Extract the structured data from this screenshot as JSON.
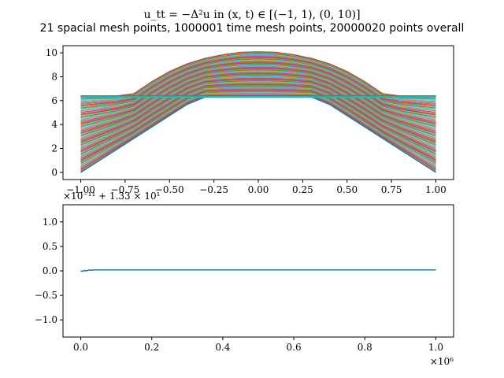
{
  "figure": {
    "title": "u_tt = −Δ²u in (x, t) ∈ [(−1, 1), (0, 10)]",
    "subtitle": "21 spacial mesh points, 1000001 time mesh points, 20000020 points overall"
  },
  "chart_data": [
    {
      "type": "line",
      "description_series_count": 21,
      "x": [
        -1.0,
        -0.9,
        -0.8,
        -0.7,
        -0.6,
        -0.5,
        -0.4,
        -0.3,
        -0.2,
        -0.1,
        0.0,
        0.1,
        0.2,
        0.3,
        0.4,
        0.5,
        0.6,
        0.7,
        0.8,
        0.9,
        1.0
      ],
      "envelope_upper": [
        6.4,
        6.4,
        6.4,
        6.6,
        7.6,
        8.45,
        9.1,
        9.55,
        9.85,
        10.05,
        10.1,
        10.05,
        9.85,
        9.55,
        9.1,
        8.45,
        7.6,
        6.6,
        6.4,
        6.4,
        6.4
      ],
      "series": [
        {
          "values": [
            0.0,
            0.95,
            1.9,
            2.85,
            3.8,
            4.75,
            5.7,
            6.3,
            6.3,
            6.3,
            6.3,
            6.3,
            6.3,
            6.3,
            5.7,
            4.75,
            3.8,
            2.85,
            1.9,
            0.95,
            0.0
          ]
        },
        {
          "values": [
            0.7,
            1.6,
            2.5,
            3.4,
            4.3,
            5.2,
            6.1,
            7.0,
            7.9,
            8.6,
            8.8,
            8.6,
            7.9,
            7.0,
            6.1,
            5.2,
            4.3,
            3.4,
            2.5,
            1.6,
            0.7
          ]
        },
        {
          "values": [
            1.4,
            2.3,
            3.2,
            4.1,
            5.0,
            5.9,
            6.8,
            7.7,
            8.5,
            9.1,
            9.3,
            9.1,
            8.5,
            7.7,
            6.8,
            5.9,
            5.0,
            4.1,
            3.2,
            2.3,
            1.4
          ]
        },
        {
          "values": [
            2.1,
            3.0,
            3.9,
            4.8,
            5.7,
            6.6,
            7.5,
            8.3,
            9.0,
            9.5,
            9.7,
            9.5,
            9.0,
            8.3,
            7.5,
            6.6,
            5.7,
            4.8,
            3.9,
            3.0,
            2.1
          ]
        },
        {
          "values": [
            6.3,
            6.3,
            6.3,
            6.3,
            6.3,
            6.3,
            6.3,
            6.3,
            6.3,
            6.3,
            6.3,
            6.3,
            6.3,
            6.3,
            6.3,
            6.3,
            6.3,
            6.3,
            6.3,
            6.3,
            6.3
          ]
        }
      ],
      "xlim": [
        -1.1,
        1.1
      ],
      "ylim": [
        -0.6,
        10.6
      ],
      "xticks": [
        -1.0,
        -0.75,
        -0.5,
        -0.25,
        0.0,
        0.25,
        0.5,
        0.75,
        1.0
      ],
      "xtick_labels": [
        "−1.00",
        "−0.75",
        "−0.50",
        "−0.25",
        "0.00",
        "0.25",
        "0.50",
        "0.75",
        "1.00"
      ],
      "yticks": [
        0,
        2,
        4,
        6,
        8,
        10
      ],
      "ytick_labels": [
        "0",
        "2",
        "4",
        "6",
        "8",
        "10"
      ],
      "grid": false
    },
    {
      "type": "line",
      "x": [
        0,
        5000,
        10000,
        15000,
        20000,
        25000,
        30000,
        35000,
        40000,
        100000,
        200000,
        300000,
        400000,
        500000,
        600000,
        700000,
        800000,
        900000,
        1000000
      ],
      "values": [
        0.0,
        -0.01,
        0.01,
        0.0,
        0.01,
        0.02,
        0.01,
        0.02,
        0.02,
        0.02,
        0.02,
        0.02,
        0.02,
        0.02,
        0.02,
        0.02,
        0.02,
        0.02,
        0.02
      ],
      "xlim": [
        -50000,
        1050000
      ],
      "ylim": [
        -1.35,
        1.35
      ],
      "xticks": [
        0,
        200000,
        400000,
        600000,
        800000,
        1000000
      ],
      "xtick_labels": [
        "0.0",
        "0.2",
        "0.4",
        "0.6",
        "0.8",
        "1.0"
      ],
      "yticks": [
        -1.0,
        -0.5,
        0.0,
        0.5,
        1.0
      ],
      "ytick_labels": [
        "−1.0",
        "−0.5",
        "0.0",
        "0.5",
        "1.0"
      ],
      "y_offset_label": "×10⁻¹¹ + 1.33 × 10¹",
      "x_multiplier_label": "×10⁶",
      "line_color": "#1f77b4",
      "grid": false
    }
  ],
  "colors": {
    "palette": [
      "#1f77b4",
      "#ff7f0e",
      "#2ca02c",
      "#d62728",
      "#9467bd",
      "#8c564b",
      "#e377c2",
      "#7f7f7f",
      "#bcbd22",
      "#17becf"
    ],
    "axes": "#000000",
    "background": "#ffffff"
  }
}
